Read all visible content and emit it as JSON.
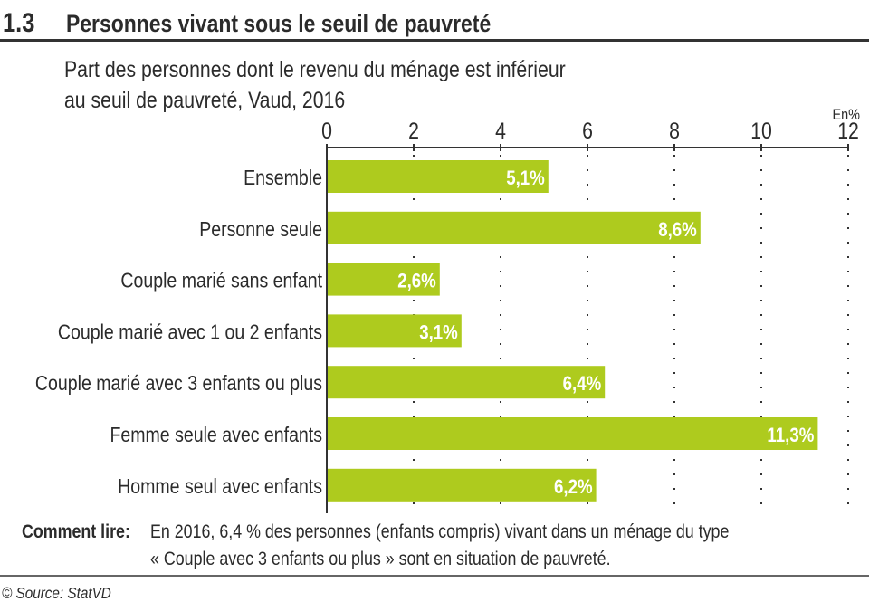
{
  "header": {
    "number": "1.3",
    "title": "Personnes vivant sous le seuil de pauvreté"
  },
  "chart_data": {
    "type": "bar",
    "orientation": "horizontal",
    "title": "Part des personnes dont le revenu du ménage est inférieur au seuil de pauvreté, Vaud, 2016",
    "title_lines": [
      "Part des personnes dont le revenu du ménage est inférieur",
      "au seuil de pauvreté, Vaud, 2016"
    ],
    "unit_label": "En%",
    "xlim": [
      0,
      12
    ],
    "xticks": [
      0,
      2,
      4,
      6,
      8,
      10,
      12
    ],
    "grid": "dotted vertical",
    "bar_color": "#aecb1e",
    "categories": [
      "Ensemble",
      "Personne seule",
      "Couple marié sans enfant",
      "Couple marié avec 1 ou 2 enfants",
      "Couple marié avec 3 enfants ou plus",
      "Femme seule avec enfants",
      "Homme seul avec enfants"
    ],
    "values": [
      5.1,
      8.6,
      2.6,
      3.1,
      6.4,
      11.3,
      6.2
    ],
    "data_labels": [
      "5,1%",
      "8,6%",
      "2,6%",
      "3,1%",
      "6,4%",
      "11,3%",
      "6,2%"
    ]
  },
  "note": {
    "label": "Comment lire:",
    "line1": "En 2016, 6,4 % des personnes (enfants compris) vivant dans un ménage du type",
    "line2": "« Couple avec 3 enfants ou plus » sont en situation de pauvreté."
  },
  "source": "© Source: StatVD"
}
